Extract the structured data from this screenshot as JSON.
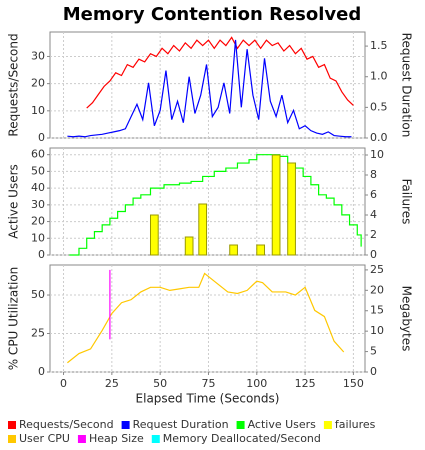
{
  "chart_data": [
    {
      "type": "line",
      "title": "Memory Contention Resolved",
      "ylabel": "Requests/Second",
      "y2label": "Request Duration",
      "xlim": [
        -7,
        156
      ],
      "ylim": [
        0,
        39
      ],
      "yticks": [
        0,
        10,
        20,
        30
      ],
      "y2lim": [
        0,
        1.73
      ],
      "y2ticks": [
        {
          "value": 0,
          "label": "0.0"
        },
        0.5,
        {
          "value": 1,
          "label": "1.0"
        },
        1.5
      ],
      "grid": true,
      "series": [
        {
          "name": "Requests/Second",
          "color": "#ff0000",
          "x": [
            12,
            15,
            18,
            21,
            24,
            27,
            30,
            33,
            36,
            39,
            42,
            45,
            48,
            51,
            54,
            57,
            60,
            63,
            66,
            69,
            72,
            75,
            78,
            81,
            84,
            87,
            90,
            93,
            96,
            99,
            102,
            105,
            108,
            111,
            114,
            117,
            120,
            123,
            126,
            129,
            132,
            135,
            138,
            141,
            144,
            147,
            150
          ],
          "values": [
            11,
            13,
            16,
            19,
            21,
            24,
            23,
            27,
            26,
            29,
            28,
            31,
            30,
            33,
            31,
            34,
            32,
            35,
            33,
            36,
            34,
            36,
            33,
            36,
            34,
            37,
            33,
            36,
            34,
            36,
            33,
            36,
            34,
            35,
            32,
            34,
            31,
            33,
            29,
            30,
            26,
            27,
            22,
            21,
            17,
            14,
            12
          ]
        },
        {
          "name": "Request Duration",
          "color": "#0000ff",
          "axis": "y2",
          "x": [
            2,
            5,
            8,
            11,
            14,
            17,
            20,
            23,
            26,
            29,
            32,
            35,
            38,
            41,
            44,
            47,
            50,
            53,
            56,
            59,
            62,
            65,
            68,
            71,
            74,
            77,
            80,
            83,
            86,
            89,
            92,
            95,
            98,
            101,
            104,
            107,
            110,
            113,
            116,
            119,
            122,
            125,
            128,
            131,
            134,
            137,
            140,
            143,
            146,
            149
          ],
          "values": [
            0.03,
            0.02,
            0.03,
            0.02,
            0.04,
            0.05,
            0.06,
            0.08,
            0.1,
            0.12,
            0.15,
            0.35,
            0.55,
            0.3,
            0.9,
            0.2,
            0.45,
            1.1,
            0.3,
            0.6,
            0.25,
            1.0,
            0.4,
            0.7,
            1.2,
            0.35,
            0.5,
            0.9,
            0.4,
            1.6,
            0.5,
            1.45,
            0.7,
            0.3,
            1.3,
            0.6,
            0.35,
            0.7,
            0.25,
            0.45,
            0.15,
            0.2,
            0.12,
            0.08,
            0.06,
            0.1,
            0.04,
            0.03,
            0.02,
            0.02
          ]
        }
      ]
    },
    {
      "type": "line",
      "ylabel": "Active Users",
      "y2label": "Failures",
      "xlim": [
        -7,
        156
      ],
      "ylim": [
        0,
        64
      ],
      "yticks": [
        0,
        10,
        20,
        30,
        40,
        50,
        60
      ],
      "y2lim": [
        0,
        10.7
      ],
      "y2ticks": [
        0,
        2,
        4,
        6,
        8,
        10
      ],
      "grid": true,
      "series": [
        {
          "name": "Active Users",
          "color": "#00ff00",
          "step": true,
          "x": [
            3,
            8,
            12,
            16,
            20,
            24,
            28,
            32,
            36,
            40,
            45,
            52,
            60,
            66,
            72,
            78,
            84,
            90,
            96,
            100,
            108,
            112,
            116,
            120,
            124,
            128,
            132,
            136,
            140,
            144,
            148,
            152,
            154
          ],
          "values": [
            0,
            4,
            10,
            14,
            18,
            22,
            26,
            30,
            34,
            36,
            40,
            42,
            43,
            44,
            47,
            50,
            52,
            55,
            57,
            60,
            60,
            59,
            55,
            52,
            47,
            42,
            36,
            34,
            30,
            24,
            18,
            12,
            5
          ]
        },
        {
          "name": "failures",
          "color": "#ffff00",
          "axis": "y2",
          "bars": true,
          "x": [
            47,
            65,
            72,
            88,
            102,
            110,
            118
          ],
          "values": [
            4,
            1.8,
            5.1,
            1,
            1,
            10,
            9.2
          ]
        }
      ]
    },
    {
      "type": "line",
      "ylabel": "% CPU Utilization",
      "y2label": "Megabytes",
      "xlabel": "Elapsed Time (Seconds)",
      "xlim": [
        -7,
        156
      ],
      "xticks": [
        0,
        25,
        50,
        75,
        100,
        125,
        150
      ],
      "ylim": [
        0,
        69.5
      ],
      "yticks": [
        0,
        25,
        50
      ],
      "y2lim": [
        0,
        26.2
      ],
      "y2ticks": [
        0,
        5,
        10,
        15,
        20,
        25
      ],
      "grid": true,
      "series": [
        {
          "name": "User CPU",
          "color": "#ffc800",
          "x": [
            2,
            8,
            14,
            20,
            25,
            30,
            35,
            40,
            45,
            50,
            55,
            60,
            65,
            70,
            73,
            78,
            85,
            90,
            95,
            100,
            103,
            108,
            115,
            120,
            125,
            130,
            135,
            140,
            145
          ],
          "values": [
            6,
            12,
            15,
            27,
            38,
            45,
            47,
            52,
            55,
            55,
            53,
            54,
            55,
            55,
            64,
            59,
            52,
            51,
            53,
            59,
            58,
            52,
            52,
            50,
            55,
            40,
            36,
            20,
            13
          ]
        },
        {
          "name": "Heap Size",
          "color": "#ff00ff",
          "axis": "y2",
          "x": [
            24,
            24
          ],
          "values": [
            25,
            8
          ]
        },
        {
          "name": "Memory Deallocated/Second",
          "color": "#00ffff",
          "axis": "y2",
          "x": [],
          "values": []
        }
      ]
    }
  ]
}
